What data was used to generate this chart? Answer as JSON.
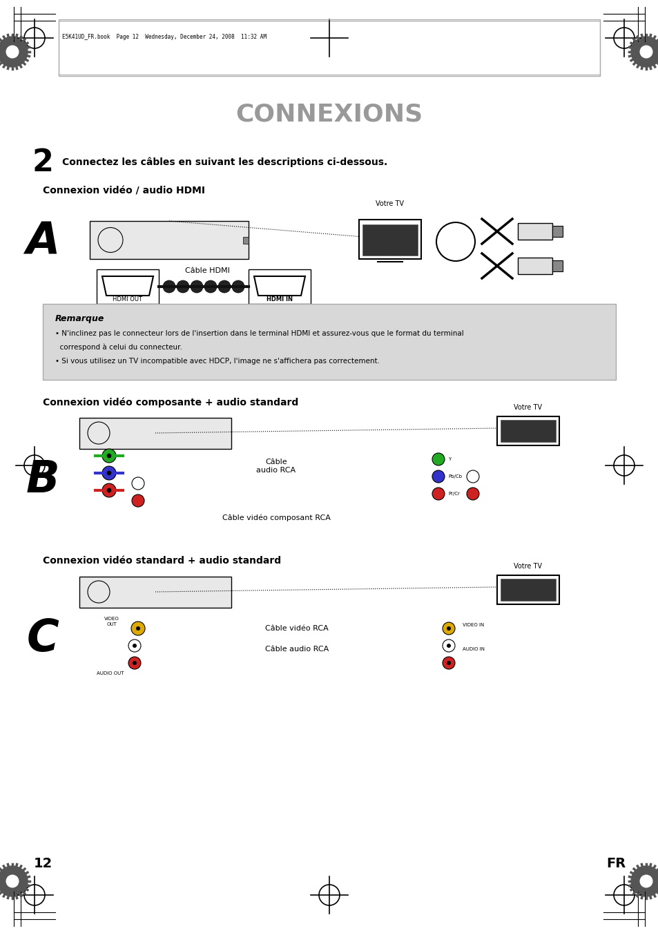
{
  "title": "CONNEXIONS",
  "header_file": "E5K41UD_FR.book  Page 12  Wednesday, December 24, 2008  11:32 AM",
  "step2_text": "Connectez les câbles en suivant les descriptions ci-dessous.",
  "section_a_title": "Connexion vidéo / audio HDMI",
  "section_b_title": "Connexion vidéo composante + audio standard",
  "section_c_title": "Connexion vidéo standard + audio standard",
  "votre_tv": "Votre TV",
  "cable_hdmi": "Câble HDMI",
  "hdmi_in": "HDMI IN",
  "hdmi_out": "HDMI OUT",
  "cable_audio_rca": "Câble\naudio RCA",
  "cable_video_composant": "Câble vidéo composant RCA",
  "cable_video_rca": "Câble vidéo RCA",
  "cable_audio_rca2": "Câble audio RCA",
  "remarque_title": "Remarque",
  "remarque_line1": "• N'inclinez pas le connecteur lors de l'insertion dans le terminal HDMI et assurez-vous que le format du terminal",
  "remarque_line2": "  correspond à celui du connecteur.",
  "remarque_line3": "• Si vous utilisez un TV incompatible avec HDCP, l'image ne s'affichera pas correctement.",
  "page_number": "12",
  "page_fr": "FR",
  "bg_color": "#ffffff",
  "title_color": "#999999",
  "border_color": "#aaaaaa",
  "text_color": "#000000",
  "note_bg": "#d8d8d8",
  "section_label_color": "#000000"
}
